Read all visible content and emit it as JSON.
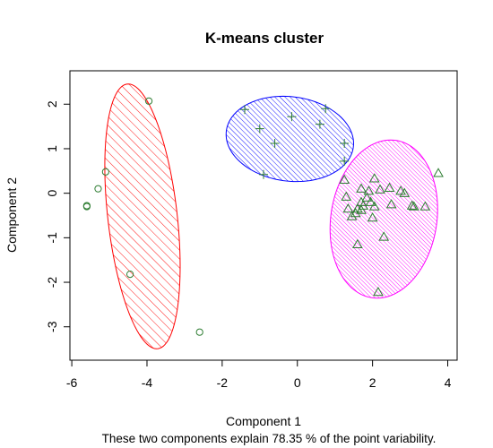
{
  "chart_data": {
    "type": "scatter",
    "title": "K-means cluster",
    "xlabel": "Component 1",
    "ylabel": "Component 2",
    "subtitle": "These two components explain 78.35 % of the point variability.",
    "xlim": [
      -6.05,
      4.25
    ],
    "ylim": [
      -3.75,
      2.75
    ],
    "xticks": [
      -6,
      -4,
      -2,
      0,
      2,
      4
    ],
    "yticks": [
      -3,
      -2,
      -1,
      0,
      1,
      2
    ],
    "grid": false,
    "point_color": "#2e7d32",
    "series": [
      {
        "marker": "circle",
        "hatch_color": "#ff0000",
        "ellipse": {
          "cx": -4.12,
          "cy": -0.52,
          "rx": 3.0,
          "ry": 0.92,
          "angle": -82,
          "hatch_angle": 45,
          "hatch_step": 7
        },
        "points": [
          [
            -3.95,
            2.07
          ],
          [
            -5.1,
            0.48
          ],
          [
            -5.3,
            0.1
          ],
          [
            -5.6,
            -0.28
          ],
          [
            -5.6,
            -0.3
          ],
          [
            -4.45,
            -1.82
          ],
          [
            -2.6,
            -3.12
          ]
        ]
      },
      {
        "marker": "plus",
        "hatch_color": "#0000ff",
        "ellipse": {
          "cx": -0.2,
          "cy": 1.22,
          "rx": 1.7,
          "ry": 0.95,
          "angle": -5,
          "hatch_angle": 45,
          "hatch_step": 4
        },
        "points": [
          [
            -1.4,
            1.88
          ],
          [
            -1.0,
            1.45
          ],
          [
            -0.6,
            1.12
          ],
          [
            -0.15,
            1.72
          ],
          [
            0.6,
            1.55
          ],
          [
            0.75,
            1.9
          ],
          [
            1.25,
            1.12
          ],
          [
            1.25,
            0.72
          ],
          [
            -0.9,
            0.42
          ]
        ]
      },
      {
        "marker": "triangle",
        "hatch_color": "#ff00ff",
        "ellipse": {
          "cx": 2.3,
          "cy": -0.58,
          "rx": 1.8,
          "ry": 1.4,
          "angle": -105,
          "hatch_angle": 45,
          "hatch_step": 3.2
        },
        "points": [
          [
            3.75,
            0.45
          ],
          [
            1.25,
            0.3
          ],
          [
            2.05,
            0.33
          ],
          [
            1.7,
            0.1
          ],
          [
            2.2,
            0.08
          ],
          [
            2.45,
            0.12
          ],
          [
            2.75,
            0.05
          ],
          [
            2.85,
            0.0
          ],
          [
            1.9,
            0.05
          ],
          [
            1.85,
            -0.1
          ],
          [
            1.3,
            -0.08
          ],
          [
            1.7,
            -0.2
          ],
          [
            1.95,
            -0.2
          ],
          [
            1.75,
            -0.28
          ],
          [
            2.05,
            -0.3
          ],
          [
            2.5,
            -0.25
          ],
          [
            3.05,
            -0.28
          ],
          [
            3.1,
            -0.3
          ],
          [
            3.4,
            -0.3
          ],
          [
            1.35,
            -0.35
          ],
          [
            1.6,
            -0.35
          ],
          [
            1.7,
            -0.38
          ],
          [
            1.55,
            -0.45
          ],
          [
            1.45,
            -0.52
          ],
          [
            2.0,
            -0.55
          ],
          [
            2.3,
            -0.98
          ],
          [
            1.6,
            -1.15
          ],
          [
            2.15,
            -2.22
          ]
        ]
      }
    ]
  }
}
